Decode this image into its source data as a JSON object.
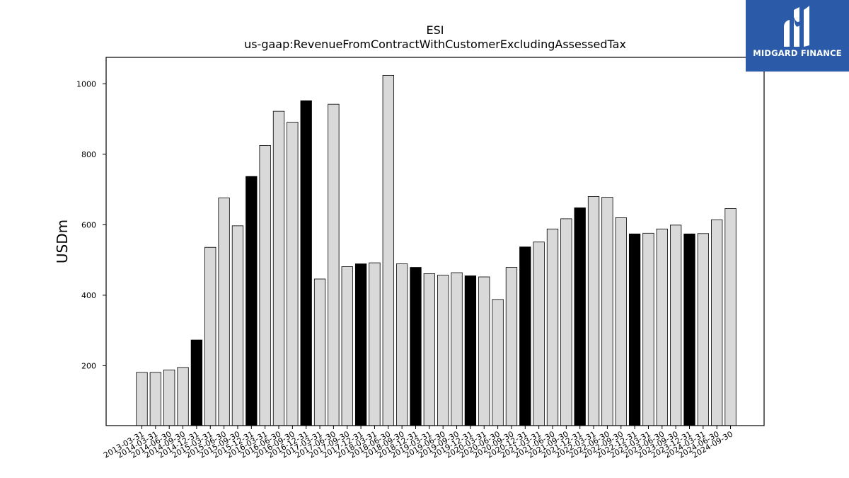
{
  "chart_data": {
    "type": "bar",
    "title": "ESI",
    "subtitle": "us-gaap:RevenueFromContractWithCustomerExcludingAssessedTax",
    "ylabel": "USDm",
    "xlabel": "",
    "ylim": [
      30,
      1075
    ],
    "yticks": [
      200,
      400,
      600,
      800,
      1000
    ],
    "grid": false,
    "colors": {
      "quarter": "#d9d9d9",
      "year_end": "#000000",
      "edge": "#000000"
    },
    "categories": [
      "2013-03-31",
      "2014-03-31",
      "2014-06-30",
      "2014-09-30",
      "2014-12-31",
      "2015-03-31",
      "2015-06-30",
      "2015-09-30",
      "2015-12-31",
      "2016-03-31",
      "2016-06-30",
      "2016-09-30",
      "2016-12-31",
      "2017-03-31",
      "2017-06-30",
      "2017-09-30",
      "2017-12-31",
      "2018-03-31",
      "2018-06-30",
      "2018-09-30",
      "2018-12-31",
      "2019-03-31",
      "2019-06-30",
      "2019-09-30",
      "2019-12-31",
      "2020-03-31",
      "2020-06-30",
      "2020-09-30",
      "2020-12-31",
      "2021-03-31",
      "2021-06-30",
      "2021-09-30",
      "2021-12-31",
      "2022-03-31",
      "2022-06-30",
      "2022-09-30",
      "2022-12-31",
      "2023-03-31",
      "2023-06-30",
      "2023-09-30",
      "2023-12-31",
      "2024-03-31",
      "2024-06-30",
      "2024-09-30"
    ],
    "values": [
      181,
      181,
      188,
      195,
      273,
      536,
      676,
      597,
      737,
      825,
      922,
      891,
      952,
      446,
      942,
      481,
      489,
      492,
      1024,
      489,
      479,
      461,
      457,
      464,
      455,
      452,
      388,
      479,
      537,
      551,
      588,
      617,
      648,
      680,
      678,
      620,
      574,
      576,
      588,
      599,
      574,
      575,
      614,
      646
    ],
    "year_end": [
      false,
      false,
      false,
      false,
      true,
      false,
      false,
      false,
      true,
      false,
      false,
      false,
      true,
      false,
      false,
      false,
      true,
      false,
      false,
      false,
      true,
      false,
      false,
      false,
      true,
      false,
      false,
      false,
      true,
      false,
      false,
      false,
      true,
      false,
      false,
      false,
      true,
      false,
      false,
      false,
      true,
      false,
      false,
      false
    ]
  },
  "logo": {
    "text": "MIDGARD FINANCE",
    "background": "#2a5aa8"
  }
}
